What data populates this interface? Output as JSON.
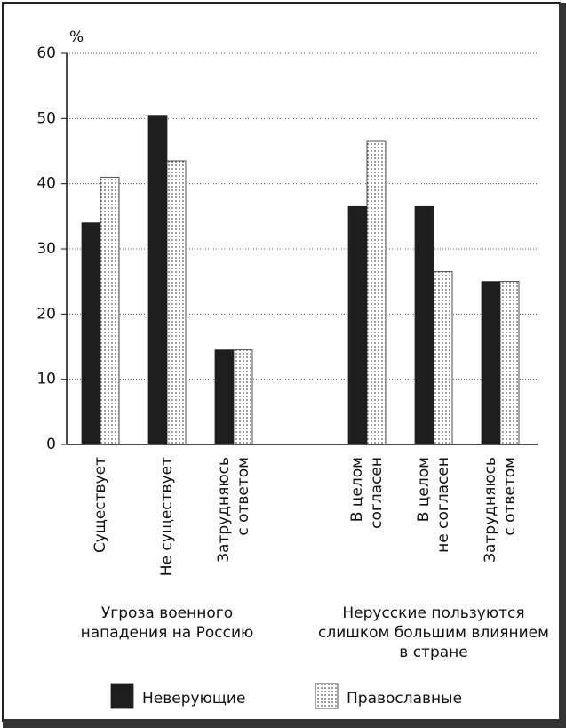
{
  "chart_data": {
    "type": "bar",
    "y_unit": "%",
    "categories": [
      [
        "Существует"
      ],
      [
        "Не существует"
      ],
      [
        "Затрудняюсь",
        "с ответом"
      ],
      [
        "В целом",
        "согласен"
      ],
      [
        "В целом",
        "не согласен"
      ],
      [
        "Затрудняюсь",
        "с ответом"
      ]
    ],
    "group_labels": [
      [
        "Угроза военного",
        "нападения на Россию"
      ],
      [
        "Нерусские пользуются",
        "слишком большим влиянием",
        "в стране"
      ]
    ],
    "series": [
      {
        "name": "Неверующие",
        "color": "#1e1e1e",
        "fill_style": "solid",
        "values": [
          34,
          50.5,
          14.5,
          36.5,
          36.5,
          25
        ]
      },
      {
        "name": "Православные",
        "color": "#ffffff",
        "fill_style": "dots",
        "values": [
          41,
          43.5,
          14.5,
          46.5,
          26.5,
          25
        ]
      }
    ],
    "ylim": [
      0,
      60
    ],
    "yticks": [
      0,
      10,
      20,
      30,
      40,
      50,
      60
    ],
    "grid": true,
    "legend": "bottom"
  }
}
